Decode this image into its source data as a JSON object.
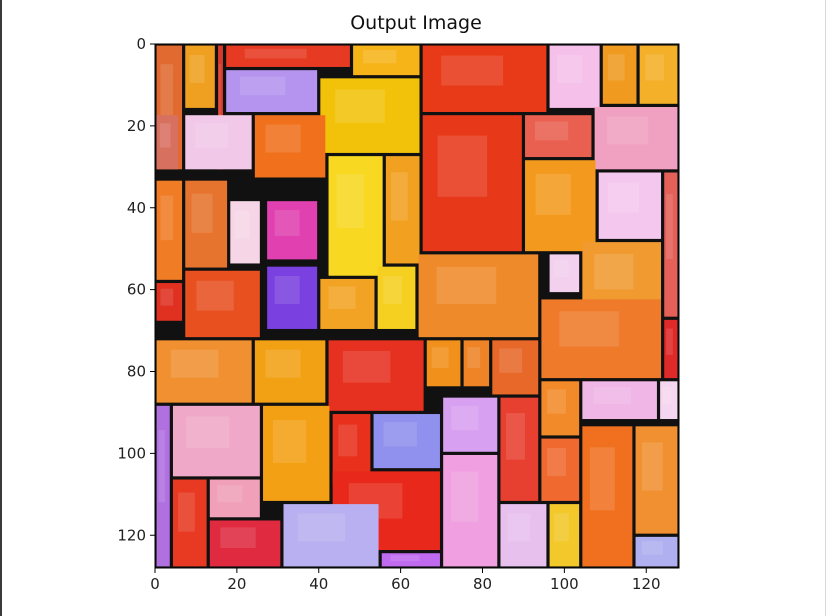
{
  "chart_data": {
    "type": "image",
    "title": "Output Image",
    "xlabel": "",
    "ylabel": "",
    "xlim": [
      0,
      128
    ],
    "ylim": [
      128,
      0
    ],
    "x_ticks": [
      0,
      20,
      40,
      60,
      80,
      100,
      120
    ],
    "y_ticks": [
      0,
      20,
      40,
      60,
      80,
      100,
      120
    ],
    "image_size": [
      128,
      128
    ],
    "description_of_content": "",
    "lead_color": "#111111",
    "tiles": [
      {
        "x0": 0,
        "x1": 7,
        "y0": 0,
        "y1": 31,
        "color": "#e06a2f"
      },
      {
        "x0": 7,
        "x1": 15,
        "y0": 0,
        "y1": 16,
        "color": "#f0a020"
      },
      {
        "x0": 15,
        "x1": 17,
        "y0": 0,
        "y1": 31,
        "color": "#d23a2a"
      },
      {
        "x0": 17,
        "x1": 48,
        "y0": 0,
        "y1": 6,
        "color": "#e63a22"
      },
      {
        "x0": 48,
        "x1": 65,
        "y0": 0,
        "y1": 8,
        "color": "#f6b418"
      },
      {
        "x0": 65,
        "x1": 96,
        "y0": 0,
        "y1": 17,
        "color": "#e83a18"
      },
      {
        "x0": 96,
        "x1": 109,
        "y0": 0,
        "y1": 16,
        "color": "#f5c1ea"
      },
      {
        "x0": 109,
        "x1": 118,
        "y0": 0,
        "y1": 15,
        "color": "#f09a20"
      },
      {
        "x0": 118,
        "x1": 128,
        "y0": 0,
        "y1": 15,
        "color": "#f4b028"
      },
      {
        "x0": 17,
        "x1": 40,
        "y0": 6,
        "y1": 17,
        "color": "#b494ee"
      },
      {
        "x0": 40,
        "x1": 65,
        "y0": 8,
        "y1": 27,
        "color": "#f2c20a"
      },
      {
        "x0": 65,
        "x1": 90,
        "y0": 17,
        "y1": 51,
        "color": "#e8381a"
      },
      {
        "x0": 90,
        "x1": 107,
        "y0": 17,
        "y1": 28,
        "color": "#e96050"
      },
      {
        "x0": 107,
        "x1": 128,
        "y0": 15,
        "y1": 31,
        "color": "#f0a0c0"
      },
      {
        "x0": 0,
        "x1": 6,
        "y0": 17,
        "y1": 31,
        "color": "#d87060"
      },
      {
        "x0": 7,
        "x1": 24,
        "y0": 17,
        "y1": 31,
        "color": "#f2c8e8"
      },
      {
        "x0": 24,
        "x1": 42,
        "y0": 17,
        "y1": 33,
        "color": "#f0701c"
      },
      {
        "x0": 42,
        "x1": 56,
        "y0": 27,
        "y1": 57,
        "color": "#f8d820"
      },
      {
        "x0": 56,
        "x1": 65,
        "y0": 27,
        "y1": 54,
        "color": "#f2a020"
      },
      {
        "x0": 90,
        "x1": 108,
        "y0": 28,
        "y1": 51,
        "color": "#f39a1e"
      },
      {
        "x0": 108,
        "x1": 124,
        "y0": 31,
        "y1": 48,
        "color": "#f4c8ee"
      },
      {
        "x0": 124,
        "x1": 128,
        "y0": 31,
        "y1": 67,
        "color": "#e46058"
      },
      {
        "x0": 0,
        "x1": 7,
        "y0": 33,
        "y1": 58,
        "color": "#f07c26"
      },
      {
        "x0": 7,
        "x1": 18,
        "y0": 33,
        "y1": 55,
        "color": "#e6742e"
      },
      {
        "x0": 18,
        "x1": 26,
        "y0": 38,
        "y1": 54,
        "color": "#f6d6e6"
      },
      {
        "x0": 27,
        "x1": 40,
        "y0": 38,
        "y1": 53,
        "color": "#e040b0"
      },
      {
        "x0": 27,
        "x1": 40,
        "y0": 54,
        "y1": 70,
        "color": "#7a40e0"
      },
      {
        "x0": 40,
        "x1": 54,
        "y0": 57,
        "y1": 70,
        "color": "#f3a323"
      },
      {
        "x0": 54,
        "x1": 64,
        "y0": 54,
        "y1": 70,
        "color": "#f5d020"
      },
      {
        "x0": 64,
        "x1": 94,
        "y0": 51,
        "y1": 72,
        "color": "#ee8a2a"
      },
      {
        "x0": 96,
        "x1": 104,
        "y0": 51,
        "y1": 61,
        "color": "#f2d0ee"
      },
      {
        "x0": 104,
        "x1": 124,
        "y0": 48,
        "y1": 68,
        "color": "#f09a30"
      },
      {
        "x0": 0,
        "x1": 7,
        "y0": 58,
        "y1": 68,
        "color": "#e03020"
      },
      {
        "x0": 7,
        "x1": 26,
        "y0": 55,
        "y1": 72,
        "color": "#e85020"
      },
      {
        "x0": 94,
        "x1": 124,
        "y0": 62,
        "y1": 82,
        "color": "#ee7a2a"
      },
      {
        "x0": 124,
        "x1": 128,
        "y0": 67,
        "y1": 82,
        "color": "#e02a2a"
      },
      {
        "x0": 0,
        "x1": 24,
        "y0": 72,
        "y1": 88,
        "color": "#f09030"
      },
      {
        "x0": 24,
        "x1": 42,
        "y0": 72,
        "y1": 88,
        "color": "#f2a014"
      },
      {
        "x0": 42,
        "x1": 66,
        "y0": 72,
        "y1": 90,
        "color": "#e63020"
      },
      {
        "x0": 66,
        "x1": 75,
        "y0": 72,
        "y1": 84,
        "color": "#f2901c"
      },
      {
        "x0": 75,
        "x1": 82,
        "y0": 72,
        "y1": 84,
        "color": "#ee8426"
      },
      {
        "x0": 82,
        "x1": 94,
        "y0": 72,
        "y1": 86,
        "color": "#e8682a"
      },
      {
        "x0": 94,
        "x1": 104,
        "y0": 82,
        "y1": 96,
        "color": "#f28a2a"
      },
      {
        "x0": 104,
        "x1": 123,
        "y0": 82,
        "y1": 92,
        "color": "#f0b6e6"
      },
      {
        "x0": 123,
        "x1": 128,
        "y0": 82,
        "y1": 92,
        "color": "#f5d6f0"
      },
      {
        "x0": 0,
        "x1": 4,
        "y0": 88,
        "y1": 128,
        "color": "#b070e0"
      },
      {
        "x0": 4,
        "x1": 26,
        "y0": 88,
        "y1": 106,
        "color": "#f0a8c8"
      },
      {
        "x0": 26,
        "x1": 43,
        "y0": 88,
        "y1": 112,
        "color": "#f3a014"
      },
      {
        "x0": 43,
        "x1": 53,
        "y0": 90,
        "y1": 108,
        "color": "#e8301c"
      },
      {
        "x0": 53,
        "x1": 70,
        "y0": 90,
        "y1": 104,
        "color": "#9090ee"
      },
      {
        "x0": 70,
        "x1": 84,
        "y0": 86,
        "y1": 100,
        "color": "#d8a0f0"
      },
      {
        "x0": 84,
        "x1": 94,
        "y0": 86,
        "y1": 112,
        "color": "#e84030"
      },
      {
        "x0": 94,
        "x1": 104,
        "y0": 96,
        "y1": 112,
        "color": "#f06a30"
      },
      {
        "x0": 104,
        "x1": 117,
        "y0": 93,
        "y1": 128,
        "color": "#f07020"
      },
      {
        "x0": 117,
        "x1": 128,
        "y0": 93,
        "y1": 120,
        "color": "#f09030"
      },
      {
        "x0": 4,
        "x1": 13,
        "y0": 106,
        "y1": 128,
        "color": "#e83a22"
      },
      {
        "x0": 13,
        "x1": 26,
        "y0": 106,
        "y1": 116,
        "color": "#f0a0b8"
      },
      {
        "x0": 43,
        "x1": 70,
        "y0": 104,
        "y1": 124,
        "color": "#e8281a"
      },
      {
        "x0": 70,
        "x1": 84,
        "y0": 100,
        "y1": 128,
        "color": "#f0a0e0"
      },
      {
        "x0": 84,
        "x1": 96,
        "y0": 112,
        "y1": 128,
        "color": "#e8c0ee"
      },
      {
        "x0": 96,
        "x1": 104,
        "y0": 112,
        "y1": 128,
        "color": "#f2c82a"
      },
      {
        "x0": 13,
        "x1": 31,
        "y0": 116,
        "y1": 128,
        "color": "#e02a40"
      },
      {
        "x0": 31,
        "x1": 55,
        "y0": 112,
        "y1": 128,
        "color": "#b8b0f0"
      },
      {
        "x0": 55,
        "x1": 70,
        "y0": 124,
        "y1": 128,
        "color": "#c06af0"
      },
      {
        "x0": 117,
        "x1": 128,
        "y0": 120,
        "y1": 128,
        "color": "#b0b0f0"
      }
    ]
  }
}
